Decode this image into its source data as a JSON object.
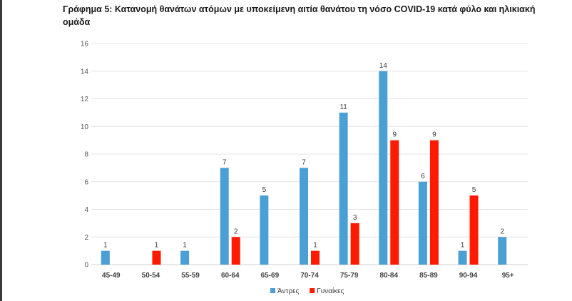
{
  "chart_data": {
    "type": "bar",
    "title": "Γράφημα 5: Κατανομή θανάτων ατόμων με υποκείμενη αιτία θανάτου τη νόσο COVID-19 κατά φύλο και ηλικιακή ομάδα",
    "categories": [
      "45-49",
      "50-54",
      "55-59",
      "60-64",
      "65-69",
      "70-74",
      "75-79",
      "80-84",
      "85-89",
      "90-94",
      "95+"
    ],
    "series": [
      {
        "name": "Άντρες",
        "color": "#4a9fd5",
        "values": [
          1,
          0,
          1,
          7,
          5,
          7,
          11,
          14,
          6,
          1,
          2
        ]
      },
      {
        "name": "Γυναίκες",
        "color": "#ff1a00",
        "values": [
          0,
          1,
          0,
          2,
          0,
          1,
          3,
          9,
          9,
          5,
          0
        ]
      }
    ],
    "ylim": [
      0,
      16
    ],
    "yticks": [
      0,
      2,
      4,
      6,
      8,
      10,
      12,
      14,
      16
    ],
    "grid": true,
    "legend": "bottom-center"
  }
}
